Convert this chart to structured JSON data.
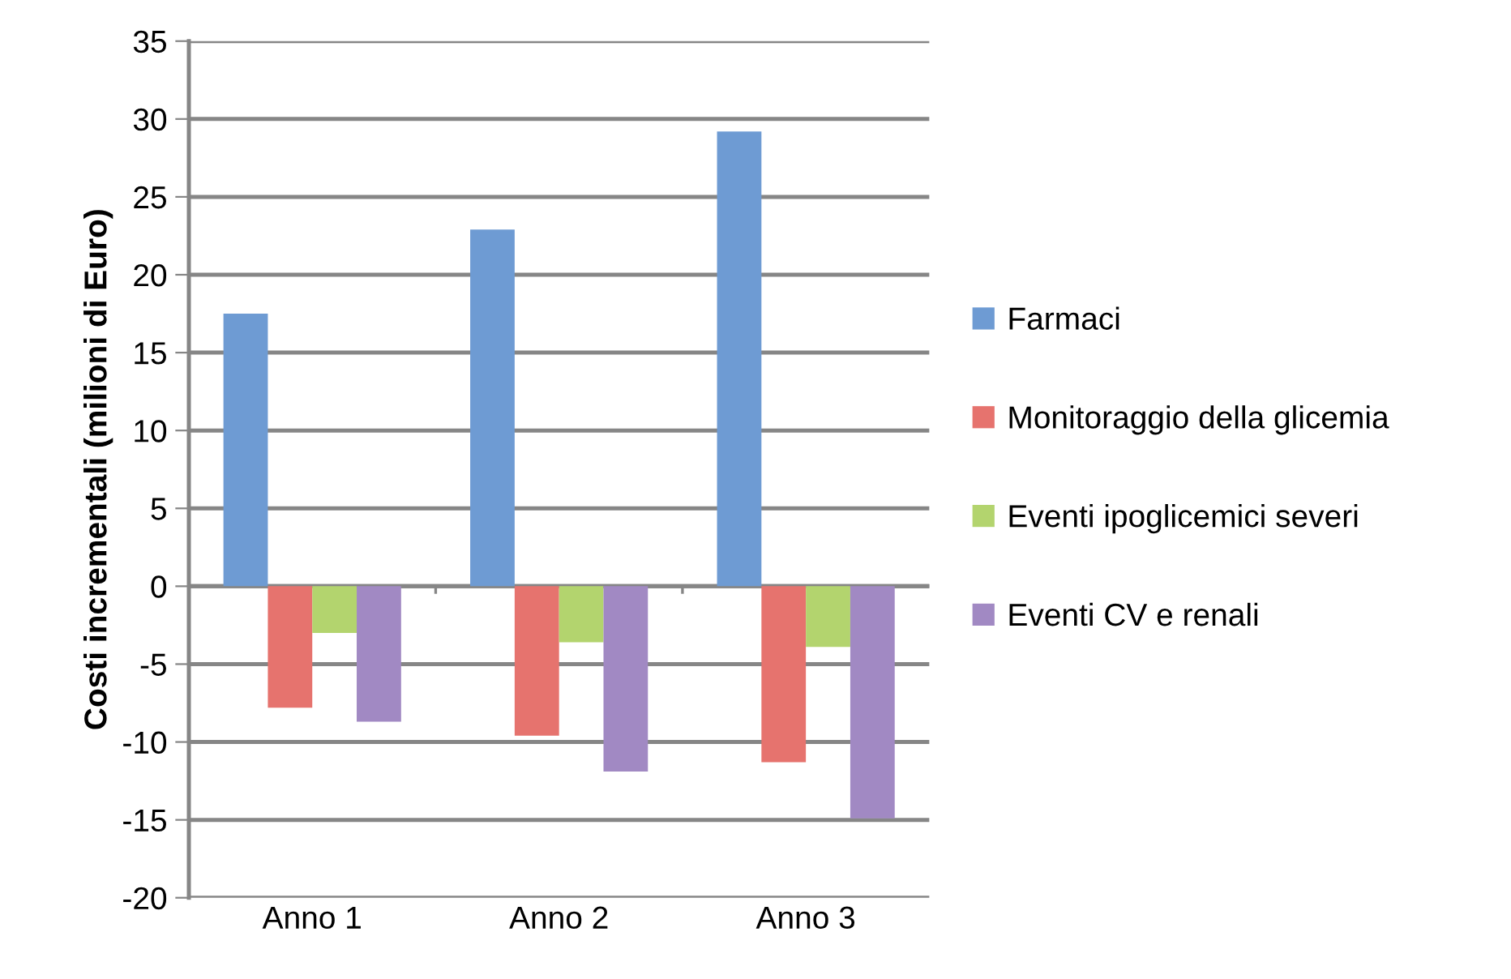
{
  "chart_data": {
    "type": "bar",
    "ylabel": "Costi incrementali (milioni di Euro)",
    "categories": [
      "Anno 1",
      "Anno 2",
      "Anno 3"
    ],
    "series": [
      {
        "name": "Farmaci",
        "color": "#6e9bd3",
        "values": [
          17.5,
          22.9,
          29.2
        ]
      },
      {
        "name": "Monitoraggio della glicemia",
        "color": "#e6736e",
        "values": [
          -7.8,
          -9.6,
          -11.3
        ]
      },
      {
        "name": "Eventi ipoglicemici severi",
        "color": "#b3d46e",
        "values": [
          -3.0,
          -3.6,
          -3.9
        ]
      },
      {
        "name": "Eventi CV e renali",
        "color": "#a189c3",
        "values": [
          -8.7,
          -11.9,
          -14.9
        ]
      }
    ],
    "ylim": [
      -20,
      35
    ],
    "yticks": [
      -20,
      -15,
      -10,
      -5,
      0,
      5,
      10,
      15,
      20,
      25,
      30,
      35
    ],
    "grid": "y",
    "legend": "right"
  }
}
